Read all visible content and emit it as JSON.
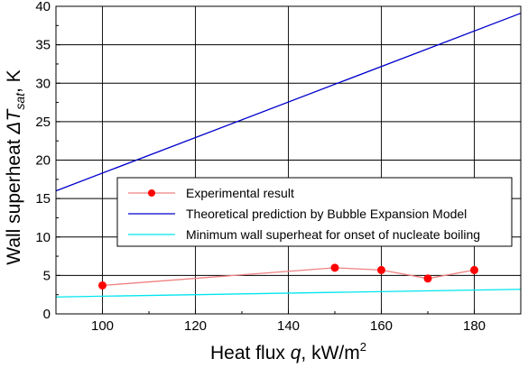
{
  "chart_data": {
    "type": "line",
    "title": "",
    "xlabel": {
      "prefix": "Heat flux ",
      "symbol": "q",
      "unit": ", kW/m",
      "unit_sup": "2"
    },
    "ylabel": {
      "prefix": "Wall superheat  ",
      "symbol": "ΔT",
      "symbol_sub": "sat",
      "unit": ", K"
    },
    "xlim": [
      90,
      190
    ],
    "ylim": [
      0,
      40
    ],
    "xticks": [
      100,
      120,
      140,
      160,
      180
    ],
    "yticks": [
      0,
      5,
      10,
      15,
      20,
      25,
      30,
      35,
      40
    ],
    "grid": true,
    "legend_position": "middle-right",
    "series": [
      {
        "name": "Experimental result",
        "style": "line-markers",
        "color": "#f08080",
        "marker_color": "#ff0000",
        "x": [
          100,
          150,
          160,
          170,
          180
        ],
        "y": [
          3.7,
          6.0,
          5.7,
          4.6,
          5.7
        ]
      },
      {
        "name": "Theoretical prediction by Bubble Expansion Model",
        "style": "line",
        "color": "#0000cc",
        "x": [
          90,
          190
        ],
        "y": [
          16.0,
          39.1
        ]
      },
      {
        "name": "Minimum wall superheat for onset of nucleate boiling",
        "style": "line",
        "color": "#00e5ee",
        "x": [
          90,
          190
        ],
        "y": [
          2.2,
          3.2
        ]
      }
    ]
  }
}
